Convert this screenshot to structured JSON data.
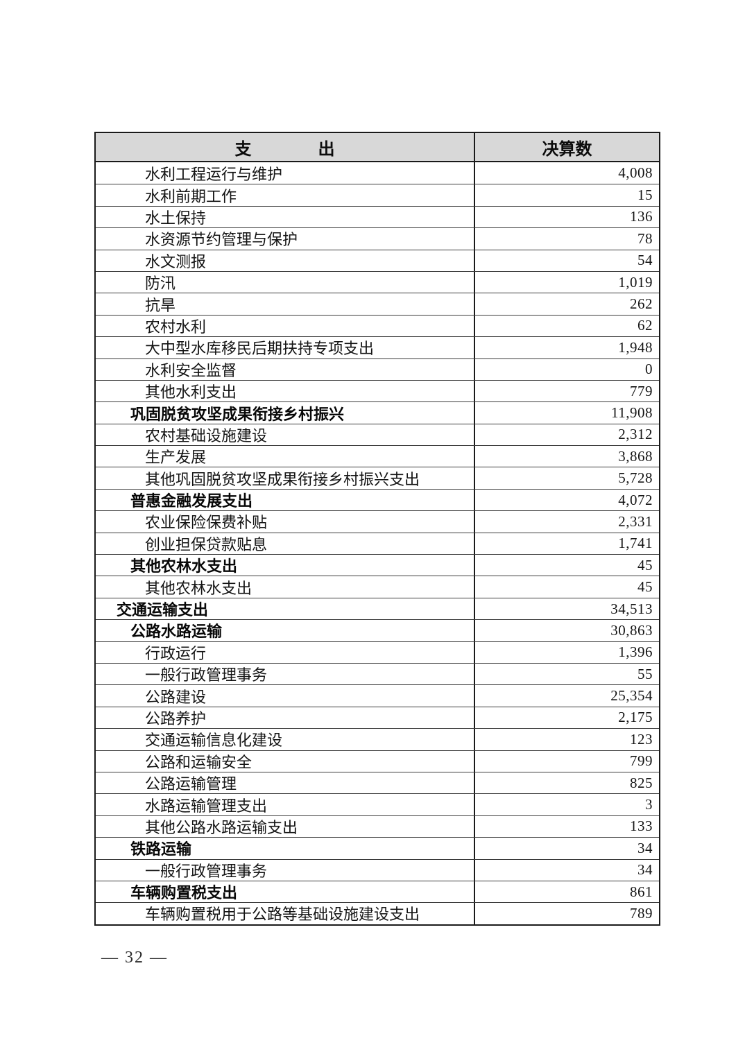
{
  "colors": {
    "header_bg": "#d8d8d8",
    "border_dark": "#1a1a1a",
    "border_light": "#3a3a3a",
    "text": "#141414"
  },
  "table": {
    "header": {
      "expense_label": "支　　　　出",
      "amount_label": "决算数"
    },
    "rows": [
      {
        "label": "水利工程运行与维护",
        "value": "4,008",
        "level": 2,
        "bold": false
      },
      {
        "label": "水利前期工作",
        "value": "15",
        "level": 2,
        "bold": false
      },
      {
        "label": "水土保持",
        "value": "136",
        "level": 2,
        "bold": false
      },
      {
        "label": "水资源节约管理与保护",
        "value": "78",
        "level": 2,
        "bold": false
      },
      {
        "label": "水文测报",
        "value": "54",
        "level": 2,
        "bold": false
      },
      {
        "label": "防汛",
        "value": "1,019",
        "level": 2,
        "bold": false
      },
      {
        "label": "抗旱",
        "value": "262",
        "level": 2,
        "bold": false
      },
      {
        "label": "农村水利",
        "value": "62",
        "level": 2,
        "bold": false
      },
      {
        "label": "大中型水库移民后期扶持专项支出",
        "value": "1,948",
        "level": 2,
        "bold": false
      },
      {
        "label": "水利安全监督",
        "value": "0",
        "level": 2,
        "bold": false
      },
      {
        "label": "其他水利支出",
        "value": "779",
        "level": 2,
        "bold": false
      },
      {
        "label": "巩固脱贫攻坚成果衔接乡村振兴",
        "value": "11,908",
        "level": 1,
        "bold": true
      },
      {
        "label": "农村基础设施建设",
        "value": "2,312",
        "level": 2,
        "bold": false
      },
      {
        "label": "生产发展",
        "value": "3,868",
        "level": 2,
        "bold": false
      },
      {
        "label": "其他巩固脱贫攻坚成果衔接乡村振兴支出",
        "value": "5,728",
        "level": 2,
        "bold": false
      },
      {
        "label": "普惠金融发展支出",
        "value": "4,072",
        "level": 1,
        "bold": true
      },
      {
        "label": "农业保险保费补贴",
        "value": "2,331",
        "level": 2,
        "bold": false
      },
      {
        "label": "创业担保贷款贴息",
        "value": "1,741",
        "level": 2,
        "bold": false
      },
      {
        "label": "其他农林水支出",
        "value": "45",
        "level": 1,
        "bold": true
      },
      {
        "label": "其他农林水支出",
        "value": "45",
        "level": 2,
        "bold": false
      },
      {
        "label": "交通运输支出",
        "value": "34,513",
        "level": 0,
        "bold": true
      },
      {
        "label": "公路水路运输",
        "value": "30,863",
        "level": 1,
        "bold": true
      },
      {
        "label": "行政运行",
        "value": "1,396",
        "level": 2,
        "bold": false
      },
      {
        "label": "一般行政管理事务",
        "value": "55",
        "level": 2,
        "bold": false
      },
      {
        "label": "公路建设",
        "value": "25,354",
        "level": 2,
        "bold": false
      },
      {
        "label": "公路养护",
        "value": "2,175",
        "level": 2,
        "bold": false
      },
      {
        "label": "交通运输信息化建设",
        "value": "123",
        "level": 2,
        "bold": false
      },
      {
        "label": "公路和运输安全",
        "value": "799",
        "level": 2,
        "bold": false
      },
      {
        "label": "公路运输管理",
        "value": "825",
        "level": 2,
        "bold": false
      },
      {
        "label": "水路运输管理支出",
        "value": "3",
        "level": 2,
        "bold": false
      },
      {
        "label": "其他公路水路运输支出",
        "value": "133",
        "level": 2,
        "bold": false
      },
      {
        "label": "铁路运输",
        "value": "34",
        "level": 1,
        "bold": true
      },
      {
        "label": "一般行政管理事务",
        "value": "34",
        "level": 2,
        "bold": false
      },
      {
        "label": "车辆购置税支出",
        "value": "861",
        "level": 1,
        "bold": true
      },
      {
        "label": "车辆购置税用于公路等基础设施建设支出",
        "value": "789",
        "level": 2,
        "bold": false
      }
    ]
  },
  "footer": {
    "page_number": "— 32 —"
  }
}
